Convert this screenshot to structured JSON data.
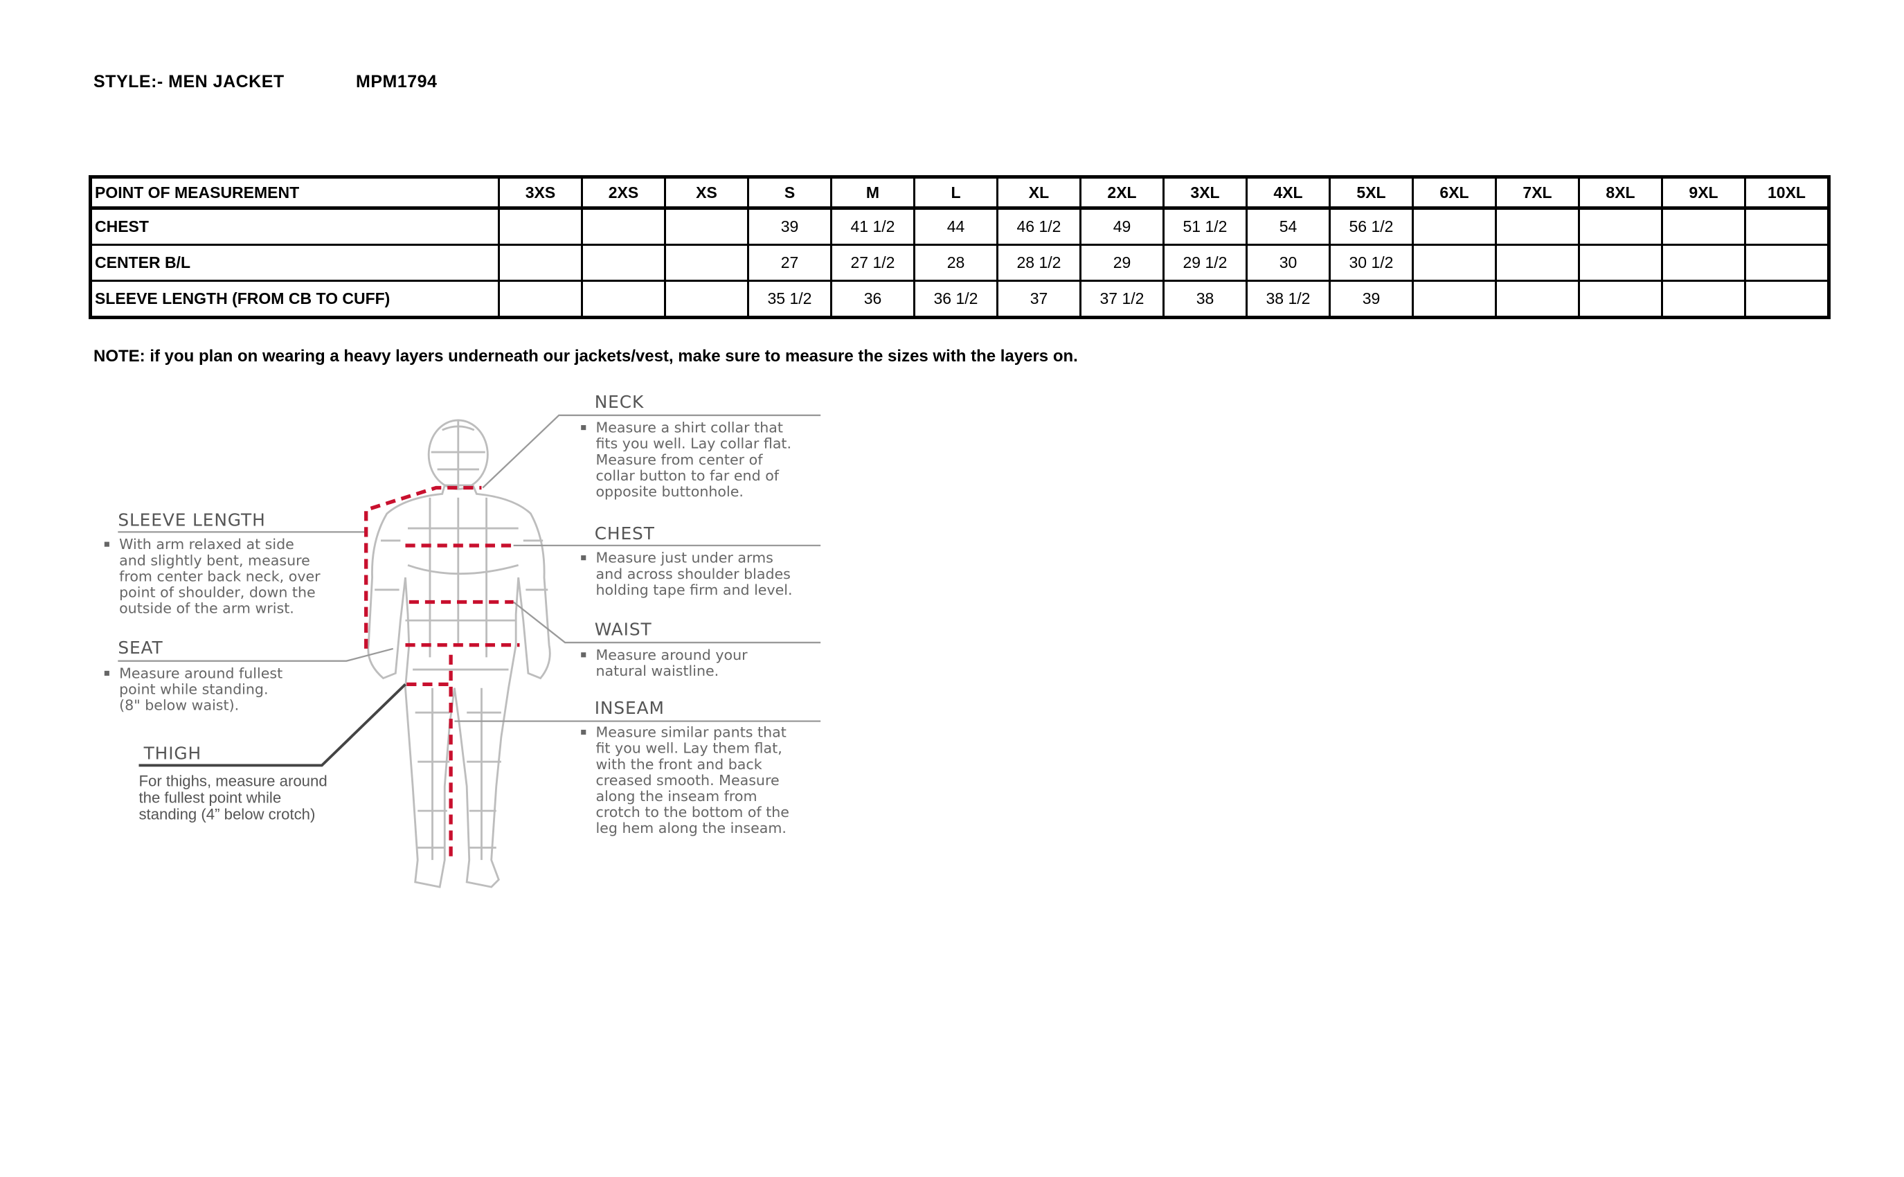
{
  "header": {
    "style_label": "STYLE:- MEN JACKET",
    "style_code": "MPM1794"
  },
  "table": {
    "columns": [
      "POINT OF MEASUREMENT",
      "3XS",
      "2XS",
      "XS",
      "S",
      "M",
      "L",
      "XL",
      "2XL",
      "3XL",
      "4XL",
      "5XL",
      "6XL",
      "7XL",
      "8XL",
      "9XL",
      "10XL"
    ],
    "rows": [
      [
        "CHEST",
        "",
        "",
        "",
        "39",
        "41 1/2",
        "44",
        "46 1/2",
        "49",
        "51 1/2",
        "54",
        "56 1/2",
        "",
        "",
        "",
        "",
        ""
      ],
      [
        "CENTER B/L",
        "",
        "",
        "",
        "27",
        "27 1/2",
        "28",
        "28 1/2",
        "29",
        "29 1/2",
        "30",
        "30 1/2",
        "",
        "",
        "",
        "",
        ""
      ],
      [
        "SLEEVE LENGTH (FROM CB TO CUFF)",
        "",
        "",
        "",
        "35 1/2",
        "36",
        "36 1/2",
        "37",
        "37 1/2",
        "38",
        "38 1/2",
        "39",
        "",
        "",
        "",
        "",
        ""
      ]
    ]
  },
  "note": "NOTE: if you plan on wearing a heavy layers underneath our jackets/vest, make sure to measure the sizes with the layers on.",
  "diagram": {
    "accent_color": "#c8102e",
    "neck": {
      "title": "NECK",
      "lines": [
        "Measure a shirt collar that",
        "fits you well. Lay collar flat.",
        "Measure from center of",
        "collar button to far end of",
        "opposite buttonhole."
      ]
    },
    "sleeve": {
      "title": "SLEEVE LENGTH",
      "lines": [
        "With arm relaxed at side",
        "and slightly bent, measure",
        "from center back neck, over",
        "point of shoulder, down the",
        "outside of the arm wrist."
      ]
    },
    "chest": {
      "title": "CHEST",
      "lines": [
        "Measure just under arms",
        "and across shoulder blades",
        "holding tape firm and level."
      ]
    },
    "waist": {
      "title": "WAIST",
      "lines": [
        "Measure around your",
        "natural waistline."
      ]
    },
    "seat": {
      "title": "SEAT",
      "lines": [
        "Measure around fullest",
        "point while standing.",
        "(8\" below waist)."
      ]
    },
    "inseam": {
      "title": "INSEAM",
      "lines": [
        "Measure similar pants that",
        "fit you well. Lay them flat,",
        "with the front and back",
        "creased smooth. Measure",
        "along the inseam from",
        "crotch to the bottom of the",
        "leg hem along the inseam."
      ]
    },
    "thigh": {
      "title": "THIGH",
      "lines": [
        "For thighs, measure around",
        "the fullest point while",
        "standing (4” below crotch)"
      ]
    }
  }
}
